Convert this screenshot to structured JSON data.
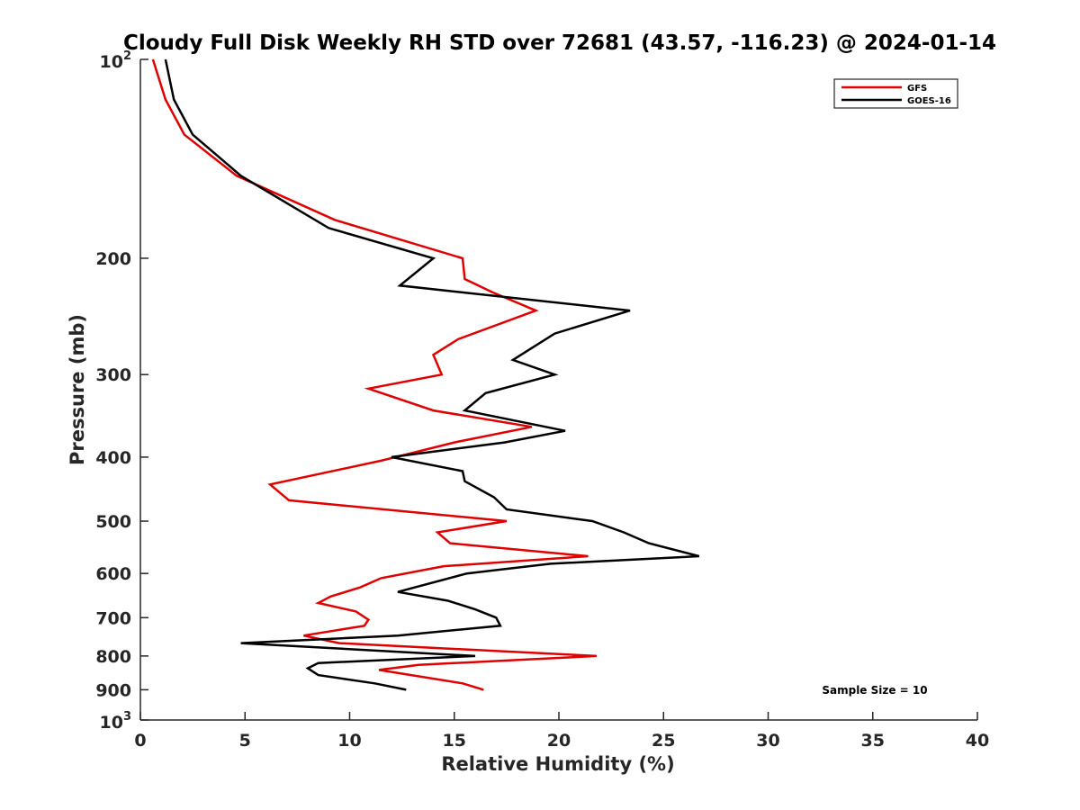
{
  "chart_data": {
    "type": "line",
    "title": "Cloudy Full Disk Weekly RH STD over 72681 (43.57, -116.23) @ 2024-01-14",
    "xlabel": "Relative Humidity (%)",
    "ylabel": "Pressure (mb)",
    "xlim": [
      0,
      40
    ],
    "ylim": [
      100,
      1000
    ],
    "yscale": "log",
    "y_inverted": true,
    "x_ticks": [
      "0",
      "5",
      "10",
      "15",
      "20",
      "25",
      "30",
      "35",
      "40"
    ],
    "y_ticks": [
      {
        "value": 100,
        "base": "10",
        "exp": "2"
      },
      {
        "value": 200,
        "label": "200"
      },
      {
        "value": 300,
        "label": "300"
      },
      {
        "value": 400,
        "label": "400"
      },
      {
        "value": 500,
        "label": "500"
      },
      {
        "value": 600,
        "label": "600"
      },
      {
        "value": 700,
        "label": "700"
      },
      {
        "value": 800,
        "label": "800"
      },
      {
        "value": 900,
        "label": "900"
      },
      {
        "value": 1000,
        "base": "10",
        "exp": "3"
      }
    ],
    "legend_position": "top-right",
    "annotation": "Sample Size = 10",
    "series": [
      {
        "name": "GFS",
        "color": "#e00000",
        "points": [
          [
            0.6,
            100
          ],
          [
            1.2,
            115
          ],
          [
            2.1,
            130
          ],
          [
            4.6,
            150
          ],
          [
            9.3,
            175
          ],
          [
            15.4,
            200
          ],
          [
            15.5,
            215
          ],
          [
            16.8,
            225
          ],
          [
            18.9,
            240
          ],
          [
            15.2,
            265
          ],
          [
            14.0,
            280
          ],
          [
            14.4,
            300
          ],
          [
            10.9,
            315
          ],
          [
            14.0,
            340
          ],
          [
            18.7,
            360
          ],
          [
            15.0,
            380
          ],
          [
            11.5,
            405
          ],
          [
            6.2,
            440
          ],
          [
            7.1,
            465
          ],
          [
            17.5,
            500
          ],
          [
            14.2,
            520
          ],
          [
            14.8,
            540
          ],
          [
            21.4,
            565
          ],
          [
            14.5,
            585
          ],
          [
            11.5,
            610
          ],
          [
            10.5,
            630
          ],
          [
            9.1,
            650
          ],
          [
            8.5,
            665
          ],
          [
            10.3,
            685
          ],
          [
            10.9,
            705
          ],
          [
            10.7,
            720
          ],
          [
            7.8,
            745
          ],
          [
            9.5,
            765
          ],
          [
            21.8,
            800
          ],
          [
            13.3,
            825
          ],
          [
            11.4,
            840
          ],
          [
            15.4,
            880
          ],
          [
            16.4,
            900
          ]
        ]
      },
      {
        "name": "GOES-16",
        "color": "#000000",
        "points": [
          [
            1.2,
            100
          ],
          [
            1.6,
            115
          ],
          [
            2.5,
            130
          ],
          [
            4.8,
            150
          ],
          [
            9.0,
            180
          ],
          [
            14.0,
            200
          ],
          [
            12.4,
            220
          ],
          [
            23.4,
            240
          ],
          [
            19.8,
            260
          ],
          [
            17.8,
            285
          ],
          [
            19.8,
            300
          ],
          [
            16.5,
            320
          ],
          [
            15.5,
            340
          ],
          [
            20.3,
            365
          ],
          [
            17.4,
            380
          ],
          [
            12.0,
            400
          ],
          [
            15.4,
            420
          ],
          [
            15.5,
            435
          ],
          [
            16.9,
            460
          ],
          [
            17.5,
            480
          ],
          [
            21.6,
            500
          ],
          [
            23.1,
            520
          ],
          [
            24.3,
            540
          ],
          [
            26.7,
            565
          ],
          [
            19.6,
            580
          ],
          [
            15.6,
            600
          ],
          [
            12.3,
            640
          ],
          [
            14.7,
            660
          ],
          [
            16.0,
            680
          ],
          [
            17.0,
            700
          ],
          [
            17.2,
            720
          ],
          [
            12.3,
            745
          ],
          [
            4.8,
            765
          ],
          [
            16.0,
            800
          ],
          [
            8.5,
            820
          ],
          [
            8.0,
            835
          ],
          [
            8.5,
            855
          ],
          [
            11.2,
            880
          ],
          [
            12.7,
            900
          ]
        ]
      }
    ]
  }
}
